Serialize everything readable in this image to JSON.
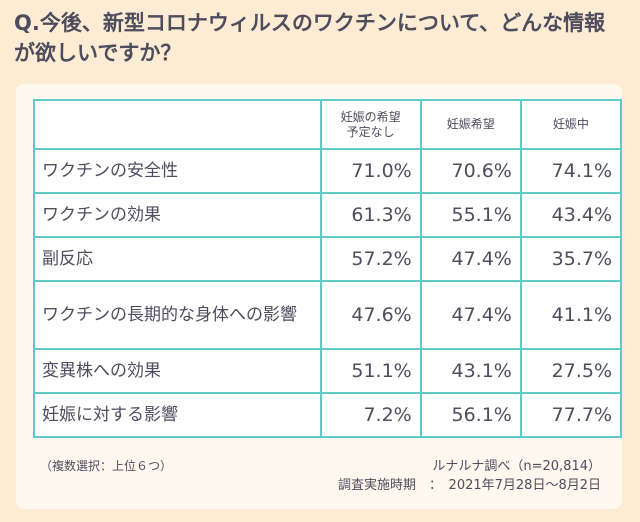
{
  "title": "Q.今後、新型コロナウィルスのワクチンについて、どんな情報が欲しいですか？",
  "table": {
    "headers": [
      "",
      "妊娠の希望\n予定なし",
      "妊娠希望",
      "妊娠中"
    ],
    "rows": [
      {
        "item": "ワクチンの安全性",
        "values": [
          "71.0%",
          "70.6%",
          "74.1%"
        ]
      },
      {
        "item": "ワクチンの効果",
        "values": [
          "61.3%",
          "55.1%",
          "43.4%"
        ]
      },
      {
        "item": "副反応",
        "values": [
          "57.2%",
          "47.4%",
          "35.7%"
        ]
      },
      {
        "item": "ワクチンの長期的な身体への影響",
        "values": [
          "47.6%",
          "47.4%",
          "41.1%"
        ]
      },
      {
        "item": "変異株への効果",
        "values": [
          "51.1%",
          "43.1%",
          "27.5%"
        ]
      },
      {
        "item": "妊娠に対する影響",
        "values": [
          "7.2%",
          "56.1%",
          "77.7%"
        ]
      }
    ]
  },
  "notes": {
    "selection": "（複数選択：上位６つ）",
    "source": "ルナルナ調べ（n=20,814）",
    "period": "調査実施時期　：　2021年7月28日〜8月2日"
  },
  "chart_data": {
    "type": "table",
    "title": "Q.今後、新型コロナウィルスのワクチンについて、どんな情報が欲しいですか？",
    "columns": [
      "妊娠の希望予定なし",
      "妊娠希望",
      "妊娠中"
    ],
    "categories": [
      "ワクチンの安全性",
      "ワクチンの効果",
      "副反応",
      "ワクチンの長期的な身体への影響",
      "変異株への効果",
      "妊娠に対する影響"
    ],
    "series": [
      {
        "name": "妊娠の希望予定なし",
        "values": [
          71.0,
          61.3,
          57.2,
          47.6,
          51.1,
          7.2
        ]
      },
      {
        "name": "妊娠希望",
        "values": [
          70.6,
          55.1,
          47.4,
          47.4,
          43.1,
          56.1
        ]
      },
      {
        "name": "妊娠中",
        "values": [
          74.1,
          43.4,
          35.7,
          41.1,
          27.5,
          77.7
        ]
      }
    ]
  }
}
